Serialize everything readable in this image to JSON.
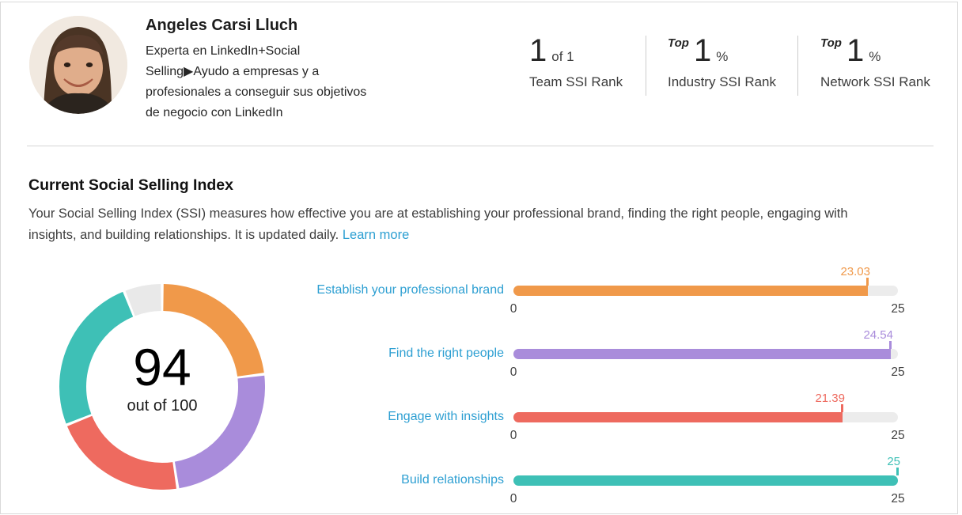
{
  "header": {
    "name": "Angeles Carsi Lluch",
    "headline_lines": [
      "Experta en LinkedIn+Social",
      "Selling▶Ayudo a empresas y a",
      "profesionales a conseguir sus objetivos",
      "de negocio con LinkedIn"
    ],
    "stats": [
      {
        "prefix": "",
        "value": "1",
        "suffix": "of 1",
        "label": "Team SSI Rank"
      },
      {
        "prefix": "Top",
        "value": "1",
        "suffix": "%",
        "label": "Industry SSI Rank"
      },
      {
        "prefix": "Top",
        "value": "1",
        "suffix": "%",
        "label": "Network SSI Rank"
      }
    ]
  },
  "section": {
    "title": "Current Social Selling Index",
    "description_line1": "Your Social Selling Index (SSI) measures how effective you are at establishing your professional brand, finding the right people, engaging with",
    "description_line2": "insights, and building relationships. It is updated daily.",
    "learn_more_label": "Learn more"
  },
  "chart_data": [
    {
      "type": "pie",
      "variant": "donut",
      "title": "Current Social Selling Index",
      "center_value": "94",
      "center_caption": "out of 100",
      "total": 100,
      "start_angle_deg": 0,
      "direction": "clockwise",
      "slices": [
        {
          "label": "Establish your professional brand",
          "value": 23.03,
          "color": "#f0994a"
        },
        {
          "label": "Find the right people",
          "value": 24.54,
          "color": "#a98cdb"
        },
        {
          "label": "Engage with insights",
          "value": 21.39,
          "color": "#ee6a5f"
        },
        {
          "label": "Build relationships",
          "value": 25,
          "color": "#3ec0b6"
        },
        {
          "label": "remainder",
          "value": 6.04,
          "color": "#e9e9e9"
        }
      ]
    },
    {
      "type": "bar",
      "orientation": "horizontal",
      "xlim": [
        0,
        25
      ],
      "axis_tick_labels": [
        "0",
        "25"
      ],
      "category_label_color": "#2d9fd2",
      "track_color": "#ececec",
      "axis_label_color": "#3f3f3f",
      "bars": [
        {
          "label": "Establish your professional brand",
          "value": 23.03,
          "value_label": "23.03",
          "color": "#f0994a"
        },
        {
          "label": "Find the right people",
          "value": 24.54,
          "value_label": "24.54",
          "color": "#a98cdb"
        },
        {
          "label": "Engage with insights",
          "value": 21.39,
          "value_label": "21.39",
          "color": "#ee6a5f"
        },
        {
          "label": "Build relationships",
          "value": 25,
          "value_label": "25",
          "color": "#3ec0b6"
        }
      ]
    }
  ]
}
